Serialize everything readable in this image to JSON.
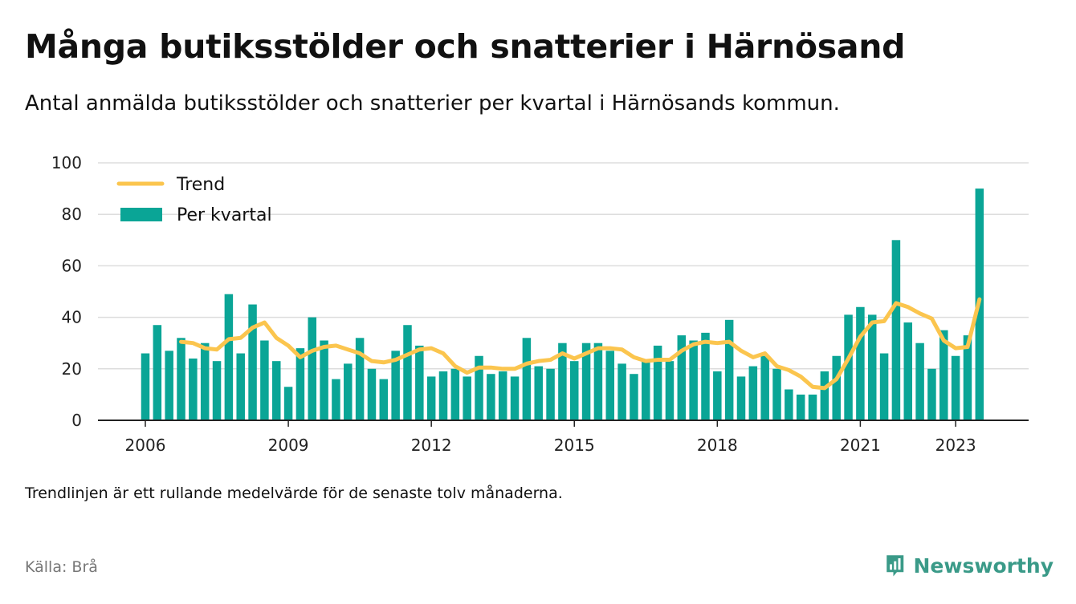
{
  "title": "Många butiksstölder och snatterier i Härnösand",
  "subtitle": "Antal anmälda butiksstölder och snatterier per kvartal i Härnösands kommun.",
  "note": "Trendlinjen är ett rullande medelvärde för de senaste tolv månaderna.",
  "source": "Källa: Brå",
  "logo": {
    "text": "Newsworthy",
    "icon": "newsworthy-chart-bubble-icon"
  },
  "colors": {
    "bar": "#0aa596",
    "trend": "#fbc54e",
    "grid": "#dddddd",
    "axis": "#222222"
  },
  "chart_data": {
    "type": "bar",
    "x_start": "2006 Q1",
    "x_ticks": [
      "2006",
      "2009",
      "2012",
      "2015",
      "2018",
      "2021",
      "2023"
    ],
    "y_ticks": [
      0,
      20,
      40,
      60,
      80,
      100
    ],
    "ylim": [
      0,
      100
    ],
    "grid": true,
    "legend_position": "top-left",
    "series": [
      {
        "name": "Per kvartal",
        "type": "bar",
        "values": [
          26,
          37,
          27,
          32,
          24,
          30,
          23,
          49,
          26,
          45,
          31,
          23,
          13,
          28,
          40,
          31,
          16,
          22,
          32,
          20,
          16,
          27,
          37,
          29,
          17,
          19,
          20,
          17,
          25,
          18,
          19,
          17,
          32,
          21,
          20,
          30,
          23,
          30,
          30,
          27,
          22,
          18,
          23,
          29,
          23,
          33,
          31,
          34,
          19,
          39,
          17,
          21,
          25,
          20,
          12,
          10,
          10,
          19,
          25,
          41,
          44,
          41,
          26,
          70,
          38,
          30,
          20,
          35,
          25,
          33,
          90
        ]
      },
      {
        "name": "Trend",
        "type": "line",
        "start_index": 3,
        "values": [
          30.5,
          30,
          28,
          27.5,
          31.5,
          32,
          36,
          38,
          32,
          29,
          24.5,
          27,
          28.5,
          29,
          27.5,
          26,
          23,
          22.5,
          23.5,
          25.5,
          27.5,
          28,
          26,
          21,
          18.5,
          20.5,
          20.5,
          20,
          20,
          22,
          23,
          23.5,
          26,
          24,
          26,
          28,
          28,
          27.5,
          24.5,
          23,
          23.5,
          23.5,
          27,
          29.5,
          30.5,
          30,
          30.5,
          27,
          24.5,
          26,
          21,
          19.5,
          17,
          13,
          12.5,
          16,
          24,
          32.5,
          38,
          38.5,
          45.5,
          44,
          41.5,
          39.5,
          31,
          28,
          28.5,
          47
        ]
      }
    ]
  }
}
